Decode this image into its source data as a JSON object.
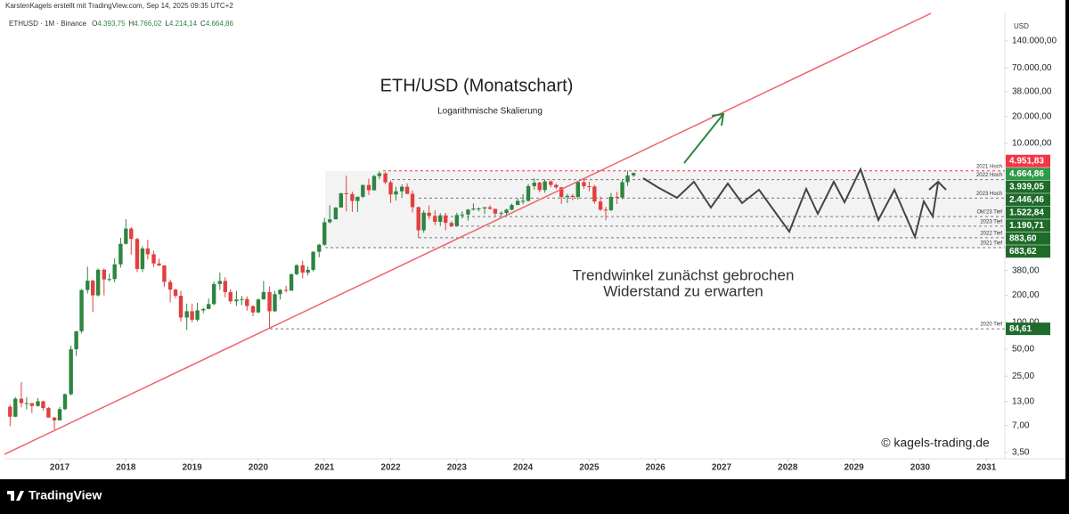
{
  "header": {
    "credit": "KarstenKagels erstellt mit TradingView.com, Sep 14, 2025 09:35 UTC+2",
    "symbol": "ETHUSD · 1M · Binance",
    "ohlc": [
      {
        "key": "O",
        "text": "4.393,75"
      },
      {
        "key": "H",
        "text": "4.766,02"
      },
      {
        "key": "L",
        "text": "4.214,14"
      },
      {
        "key": "C",
        "text": "4.664,86"
      }
    ]
  },
  "footer": {
    "brand": "TradingView"
  },
  "chart_data": {
    "type": "candlestick",
    "title": "ETH/USD (Monatschart)",
    "subtitle": "Logarithmische Skalierung",
    "annotations": [
      "Trendwinkel zunächst gebrochen",
      "Widerstand zu erwarten"
    ],
    "watermark": "© kagels-trading.de",
    "y_axis_unit": "USD",
    "log_scale": true,
    "up_color": "#2e8540",
    "down_color": "#e0403f",
    "xlim": [
      2016.165,
      2031.28
    ],
    "xticks": [
      2017,
      2018,
      2019,
      2020,
      2021,
      2022,
      2023,
      2024,
      2025,
      2026,
      2027,
      2028,
      2029,
      2030,
      2031
    ],
    "ylim": [
      2.98,
      285000
    ],
    "yticks": [
      {
        "value": 140000,
        "label": "140.000,00"
      },
      {
        "value": 70000,
        "label": "70.000,00"
      },
      {
        "value": 38000,
        "label": "38.000,00"
      },
      {
        "value": 20000,
        "label": "20.000,00"
      },
      {
        "value": 10000,
        "label": "10.000,00"
      },
      {
        "value": 380,
        "label": "380,00"
      },
      {
        "value": 200,
        "label": "200,00"
      },
      {
        "value": 100,
        "label": "100,00"
      },
      {
        "value": 50,
        "label": "50,00"
      },
      {
        "value": 25,
        "label": "25,00"
      },
      {
        "value": 13,
        "label": "13,00"
      },
      {
        "value": 7,
        "label": "7,00"
      },
      {
        "value": 3.5,
        "label": "3,50"
      }
    ],
    "price_levels": [
      {
        "value": 4951.83,
        "label": "4.951,83",
        "note": "2021 Hoch",
        "color": "#f23645"
      },
      {
        "value": 4664.86,
        "label": "4.664,86",
        "color": "#2e9a4a"
      },
      {
        "value": 3939.05,
        "label": "3.939,05",
        "note": "2022 Hoch",
        "color": "#1e6b2a"
      },
      {
        "value": 2446.46,
        "label": "2.446,46",
        "note": "2023 Hoch",
        "color": "#1e6b2a"
      },
      {
        "value": 1522.84,
        "label": "1.522,84",
        "note": "Okt'23 Tief",
        "color": "#1e6b2a"
      },
      {
        "value": 1190.71,
        "label": "1.190,71",
        "note": "2023 Tief",
        "color": "#1e6b2a"
      },
      {
        "value": 883.6,
        "label": "883,60",
        "note": "2022 Tief",
        "color": "#1e6b2a"
      },
      {
        "value": 683.62,
        "label": "683,62",
        "note": "2021 Tief",
        "color": "#1e6b2a"
      },
      {
        "value": 84.61,
        "label": "84,61",
        "note": "2020 Tief",
        "color": "#1e6b2a"
      }
    ],
    "x": [
      2016.25,
      2016.33,
      2016.42,
      2016.5,
      2016.58,
      2016.67,
      2016.75,
      2016.83,
      2016.92,
      2017,
      2017.08,
      2017.17,
      2017.25,
      2017.33,
      2017.42,
      2017.5,
      2017.58,
      2017.67,
      2017.75,
      2017.83,
      2017.92,
      2018,
      2018.08,
      2018.17,
      2018.25,
      2018.33,
      2018.42,
      2018.5,
      2018.58,
      2018.67,
      2018.75,
      2018.83,
      2018.92,
      2019,
      2019.08,
      2019.17,
      2019.25,
      2019.33,
      2019.42,
      2019.5,
      2019.58,
      2019.67,
      2019.75,
      2019.83,
      2019.92,
      2020,
      2020.08,
      2020.17,
      2020.25,
      2020.33,
      2020.42,
      2020.5,
      2020.58,
      2020.67,
      2020.75,
      2020.83,
      2020.92,
      2021,
      2021.08,
      2021.17,
      2021.25,
      2021.33,
      2021.42,
      2021.5,
      2021.58,
      2021.67,
      2021.75,
      2021.83,
      2021.92,
      2022,
      2022.08,
      2022.17,
      2022.25,
      2022.33,
      2022.42,
      2022.5,
      2022.58,
      2022.67,
      2022.75,
      2022.83,
      2022.92,
      2023,
      2023.08,
      2023.17,
      2023.25,
      2023.33,
      2023.42,
      2023.5,
      2023.58,
      2023.67,
      2023.75,
      2023.83,
      2023.92,
      2024,
      2024.08,
      2024.17,
      2024.25,
      2024.33,
      2024.42,
      2024.5,
      2024.58,
      2024.67,
      2024.75,
      2024.83,
      2024.92,
      2025,
      2025.08,
      2025.17,
      2025.25,
      2025.33,
      2025.42,
      2025.5,
      2025.58,
      2025.67
    ],
    "open": [
      11.4,
      8.8,
      14,
      12.5,
      12.5,
      11.6,
      13.1,
      11,
      8.6,
      8,
      10.7,
      15.7,
      50,
      79.5,
      230,
      292,
      200,
      387,
      302,
      305,
      445,
      755,
      1118,
      855,
      395,
      670,
      577,
      455,
      433,
      283,
      232,
      198,
      113,
      133,
      107,
      136,
      141,
      160,
      268,
      290,
      218,
      172,
      180,
      182,
      152,
      129,
      180,
      218,
      133,
      206,
      231,
      226,
      346,
      435,
      360,
      386,
      615,
      737,
      1315,
      1417,
      1920,
      2775,
      2710,
      2275,
      2535,
      3430,
      3000,
      4320,
      4630,
      3680,
      2690,
      2920,
      3280,
      2730,
      1940,
      1070,
      1680,
      1550,
      1330,
      1570,
      1295,
      1195,
      1585,
      1605,
      1820,
      1870,
      1875,
      1935,
      1855,
      1645,
      1670,
      1815,
      2050,
      2280,
      2280,
      3340,
      3645,
      3015,
      3765,
      3440,
      3230,
      2515,
      2600,
      2520,
      3700,
      3335,
      3300,
      2240,
      1820,
      1795,
      2530,
      2485,
      3700,
      4393.75
    ],
    "high": [
      12,
      14.6,
      21.5,
      14.5,
      12.5,
      14.2,
      13.3,
      11.3,
      8.8,
      11.3,
      16,
      55,
      80,
      235,
      420,
      300,
      400,
      400,
      350,
      520,
      880,
      1420,
      1160,
      880,
      710,
      835,
      630,
      515,
      435,
      300,
      238,
      225,
      162,
      160,
      165,
      145,
      185,
      285,
      360,
      320,
      235,
      225,
      198,
      195,
      155,
      185,
      290,
      252,
      225,
      235,
      256,
      350,
      445,
      490,
      420,
      625,
      755,
      1475,
      2040,
      1945,
      2800,
      4370,
      2890,
      2550,
      3470,
      4030,
      4460,
      4870,
      4780,
      3860,
      3280,
      3480,
      3580,
      2970,
      1975,
      1790,
      2030,
      1790,
      1660,
      1680,
      1350,
      1680,
      1740,
      1850,
      2140,
      1930,
      1930,
      2030,
      1865,
      1750,
      1860,
      2130,
      2440,
      2720,
      3520,
      4090,
      3730,
      3975,
      3890,
      3560,
      3280,
      2730,
      2725,
      3720,
      4110,
      3745,
      3440,
      2550,
      1955,
      2790,
      2880,
      3940,
      4955,
      4766.02
    ],
    "low": [
      6.9,
      8.7,
      11.2,
      10.6,
      9.7,
      11.4,
      10.3,
      8.9,
      6.3,
      8,
      10.4,
      15.2,
      42,
      75,
      210,
      130,
      195,
      200,
      285,
      280,
      410,
      740,
      570,
      365,
      365,
      505,
      415,
      425,
      250,
      167,
      187,
      102,
      82,
      100,
      102,
      127,
      140,
      155,
      230,
      190,
      162,
      152,
      155,
      135,
      117,
      127,
      180,
      85,
      130,
      180,
      215,
      226,
      335,
      310,
      335,
      370,
      535,
      715,
      1275,
      1420,
      1920,
      1740,
      1715,
      1720,
      2450,
      2650,
      2975,
      3990,
      3500,
      2160,
      2300,
      2450,
      2720,
      1700,
      880,
      1000,
      1420,
      1220,
      1190,
      1070,
      1160,
      1190,
      1460,
      1370,
      1780,
      1740,
      1625,
      1830,
      1550,
      1530,
      1520,
      1790,
      2050,
      2100,
      2240,
      3050,
      2850,
      2810,
      3240,
      3080,
      2110,
      2150,
      2310,
      2360,
      3100,
      2920,
      2120,
      1760,
      1385,
      1750,
      2110,
      2375,
      3355,
      4214.14
    ],
    "close": [
      8.8,
      14,
      12.5,
      12.5,
      11.6,
      13.1,
      11,
      8.6,
      8,
      10.7,
      15.7,
      50,
      79.5,
      230,
      292,
      200,
      387,
      302,
      305,
      445,
      755,
      1118,
      855,
      395,
      670,
      577,
      455,
      433,
      283,
      232,
      198,
      113,
      133,
      107,
      136,
      141,
      160,
      268,
      290,
      218,
      172,
      180,
      182,
      152,
      129,
      180,
      218,
      133,
      206,
      231,
      226,
      346,
      435,
      360,
      386,
      615,
      737,
      1315,
      1417,
      1920,
      2775,
      2710,
      2275,
      2535,
      3430,
      3000,
      4320,
      4630,
      3680,
      2690,
      2920,
      3280,
      2730,
      1940,
      1070,
      1680,
      1550,
      1330,
      1570,
      1295,
      1195,
      1585,
      1605,
      1820,
      1870,
      1875,
      1935,
      1855,
      1645,
      1670,
      1815,
      2050,
      2280,
      2280,
      3340,
      3645,
      3015,
      3765,
      3440,
      3230,
      2515,
      2600,
      2520,
      3700,
      3335,
      3300,
      2240,
      1820,
      1795,
      2530,
      2485,
      3700,
      4390,
      4664.86
    ]
  }
}
